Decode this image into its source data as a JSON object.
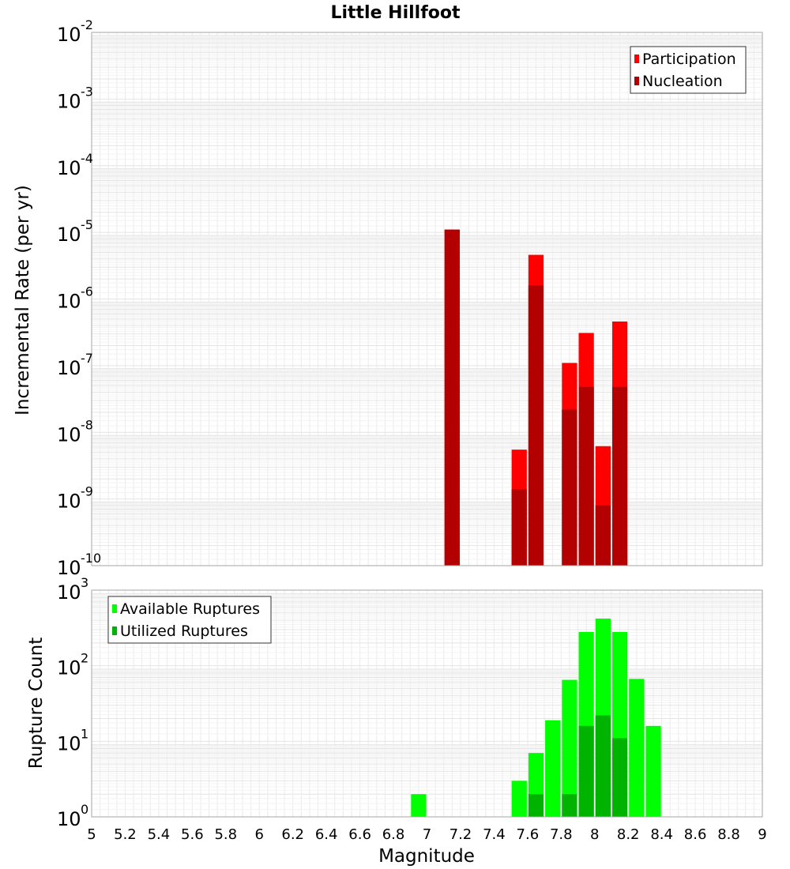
{
  "chart_data": [
    {
      "type": "bar",
      "title": "Little Hillfoot",
      "xlabel": "",
      "ylabel": "Incremental Rate (per yr)",
      "yscale": "log",
      "xlim": [
        5,
        9
      ],
      "ylim_exp": [
        -10,
        -2
      ],
      "legend_position": "top-right",
      "colors": {
        "Participation": "#ff0000",
        "Nucleation": "#b30000"
      },
      "series": [
        {
          "name": "Participation",
          "x": [
            7.15,
            7.55,
            7.65,
            7.85,
            7.95,
            8.05,
            8.15
          ],
          "values": [
            1.1e-05,
            5.5e-09,
            4.6e-06,
            1.1e-07,
            3.1e-07,
            6.2e-09,
            4.6e-07
          ]
        },
        {
          "name": "Nucleation",
          "x": [
            7.15,
            7.55,
            7.65,
            7.85,
            7.95,
            8.05,
            8.15
          ],
          "values": [
            1.1e-05,
            1.4e-09,
            1.6e-06,
            2.2e-08,
            4.8e-08,
            8e-10,
            4.8e-08
          ]
        }
      ]
    },
    {
      "type": "bar",
      "title": "",
      "xlabel": "Magnitude",
      "ylabel": "Rupture Count",
      "yscale": "log",
      "xlim": [
        5,
        9
      ],
      "ylim_exp": [
        0,
        3
      ],
      "legend_position": "top-left",
      "colors": {
        "Available Ruptures": "#00ff00",
        "Utilized Ruptures": "#00b300"
      },
      "series": [
        {
          "name": "Available Ruptures",
          "x": [
            6.95,
            7.15,
            7.25,
            7.35,
            7.55,
            7.65,
            7.75,
            7.85,
            7.95,
            8.05,
            8.15,
            8.25,
            8.35,
            8.45
          ],
          "values": [
            2,
            1,
            1,
            1,
            3,
            7,
            19,
            65,
            280,
            420,
            280,
            67,
            16,
            1
          ]
        },
        {
          "name": "Utilized Ruptures",
          "x": [
            7.15,
            7.55,
            7.65,
            7.75,
            7.85,
            7.95,
            8.05,
            8.15,
            8.25
          ],
          "values": [
            1,
            1,
            2,
            1,
            2,
            16,
            22,
            11,
            1
          ]
        }
      ],
      "x_ticks": [
        "5",
        "5.2",
        "5.4",
        "5.6",
        "5.8",
        "6",
        "6.2",
        "6.4",
        "6.6",
        "6.8",
        "7",
        "7.2",
        "7.4",
        "7.6",
        "7.8",
        "8",
        "8.2",
        "8.4",
        "8.6",
        "8.8",
        "9"
      ]
    }
  ]
}
